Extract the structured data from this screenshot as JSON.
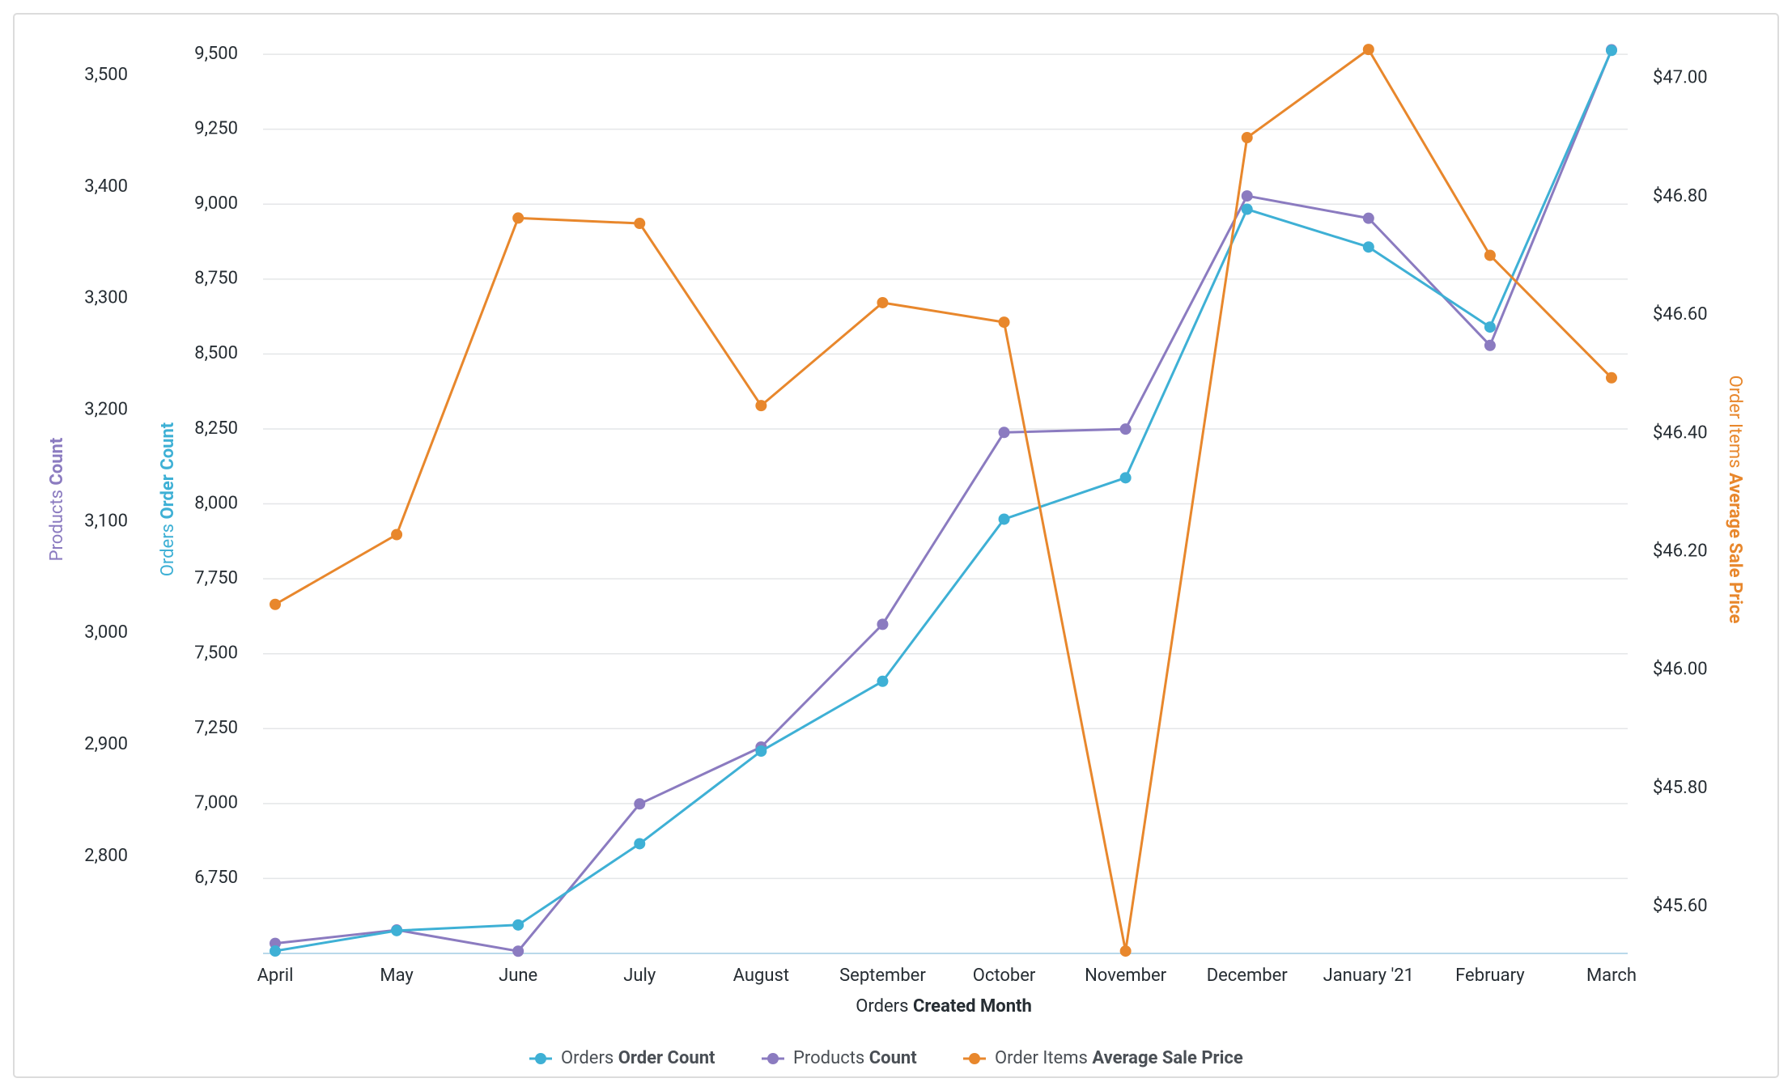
{
  "chart_data": {
    "type": "line",
    "x_label": [
      "Orders",
      "Created Month"
    ],
    "categories": [
      "April",
      "May",
      "June",
      "July",
      "August",
      "September",
      "October",
      "November",
      "December",
      "January '21",
      "February",
      "March"
    ],
    "y_label": [
      "Orders",
      "Order Count"
    ],
    "ylim": [
      6500,
      9530
    ],
    "yticks": [
      {
        "value": 6750,
        "label": "6,750"
      },
      {
        "value": 7000,
        "label": "7,000"
      },
      {
        "value": 7250,
        "label": "7,250"
      },
      {
        "value": 7500,
        "label": "7,500"
      },
      {
        "value": 7750,
        "label": "7,750"
      },
      {
        "value": 8000,
        "label": "8,000"
      },
      {
        "value": 8250,
        "label": "8,250"
      },
      {
        "value": 8500,
        "label": "8,500"
      },
      {
        "value": 8750,
        "label": "8,750"
      },
      {
        "value": 9000,
        "label": "9,000"
      },
      {
        "value": 9250,
        "label": "9,250"
      },
      {
        "value": 9500,
        "label": "9,500"
      }
    ],
    "y3_label": [
      "Products",
      "Count"
    ],
    "y3lim": [
      2713,
      3527
    ],
    "y3ticks": [
      {
        "value": 2800,
        "label": "2,800"
      },
      {
        "value": 2900,
        "label": "2,900"
      },
      {
        "value": 3000,
        "label": "3,000"
      },
      {
        "value": 3100,
        "label": "3,100"
      },
      {
        "value": 3200,
        "label": "3,200"
      },
      {
        "value": 3300,
        "label": "3,300"
      },
      {
        "value": 3400,
        "label": "3,400"
      },
      {
        "value": 3500,
        "label": "3,500"
      }
    ],
    "y2_label": [
      "Order Items",
      "Average Sale Price"
    ],
    "y2lim": [
      45.521,
      47.056
    ],
    "y2ticks": [
      {
        "value": 45.6,
        "label": "$45.60"
      },
      {
        "value": 45.8,
        "label": "$45.80"
      },
      {
        "value": 46.0,
        "label": "$46.00"
      },
      {
        "value": 46.2,
        "label": "$46.20"
      },
      {
        "value": 46.4,
        "label": "$46.40"
      },
      {
        "value": 46.6,
        "label": "$46.60"
      },
      {
        "value": 46.8,
        "label": "$46.80"
      },
      {
        "value": 47.0,
        "label": "$47.00"
      }
    ],
    "grid": true,
    "legend": "bottom",
    "series": [
      {
        "name": [
          "Orders",
          "Order Count"
        ],
        "color": "#3eb0d5",
        "axis": "y",
        "values": [
          6508,
          6576,
          6595,
          6866,
          7175,
          7408,
          7949,
          8087,
          8983,
          8857,
          8590,
          9513
        ]
      },
      {
        "name": [
          "Products",
          "Count"
        ],
        "color": "#8b7bc0",
        "axis": "y3",
        "values": [
          2722,
          2734,
          2715,
          2847,
          2898,
          3008,
          3180,
          3183,
          3392,
          3372,
          3258,
          3523
        ]
      },
      {
        "name": [
          "Order Items",
          "Average Sale Price"
        ],
        "color": "#e8872c",
        "axis": "y2",
        "values": [
          46.111,
          46.229,
          46.764,
          46.755,
          46.447,
          46.621,
          46.588,
          45.525,
          46.9,
          47.049,
          46.701,
          46.494
        ]
      }
    ]
  }
}
